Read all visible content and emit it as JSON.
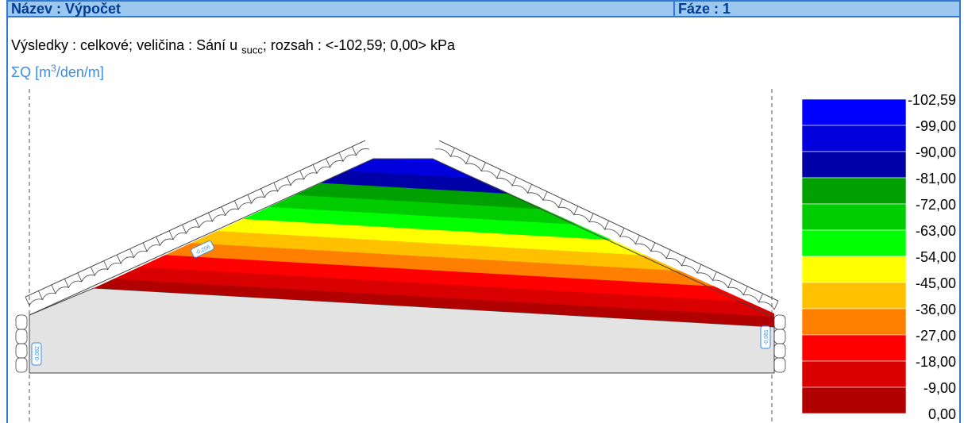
{
  "header": {
    "title": "Název : Výpočet",
    "phase": "Fáze : 1"
  },
  "results": {
    "prefix": "Výsledky : celkové; veličina : Sání u ",
    "subscript": "succ",
    "suffix": "; rozsah : <-102,59; 0,00> kPa"
  },
  "flow": {
    "prefix": "ΣQ [m",
    "superscript": "3",
    "suffix": "/den/m]"
  },
  "legend": {
    "labels": [
      "-102,59",
      "-99,00",
      "-90,00",
      "-81,00",
      "-72,00",
      "-63,00",
      "-54,00",
      "-45,00",
      "-36,00",
      "-27,00",
      "-18,00",
      "-9,00",
      "0,00"
    ],
    "colors": [
      "#0000ff",
      "#0000dc",
      "#0000a8",
      "#00a000",
      "#00cc00",
      "#00ff00",
      "#ffff00",
      "#ffc000",
      "#ff8000",
      "#ff0000",
      "#d80000",
      "#b00000"
    ]
  },
  "flux_labels": [
    "-0,206",
    "-0,082",
    "-0,081"
  ]
}
